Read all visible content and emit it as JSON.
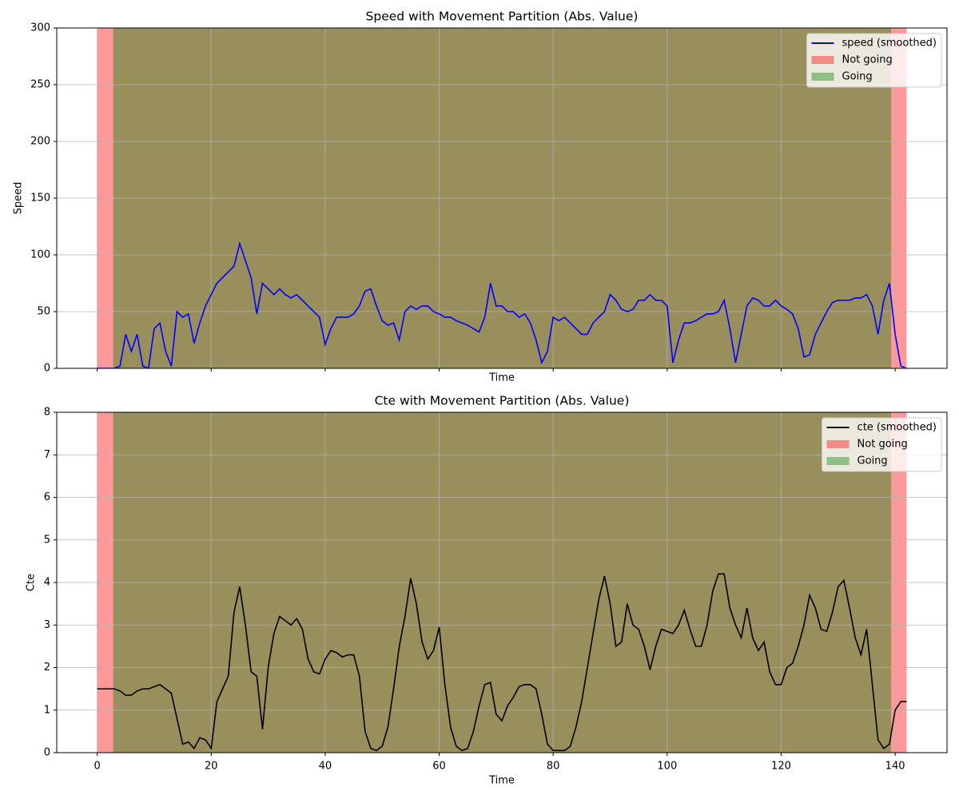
{
  "chart_data": [
    {
      "type": "line",
      "title": "Speed with Movement Partition (Abs. Value)",
      "xlabel": "Time",
      "ylabel": "Speed",
      "x": [
        0,
        1,
        2,
        3,
        4,
        5,
        6,
        7,
        8,
        9,
        10,
        11,
        12,
        13,
        14,
        15,
        16,
        17,
        18,
        19,
        20,
        21,
        22,
        23,
        24,
        25,
        26,
        27,
        28,
        29,
        30,
        31,
        32,
        33,
        34,
        35,
        36,
        37,
        38,
        39,
        40,
        41,
        42,
        43,
        44,
        45,
        46,
        47,
        48,
        49,
        50,
        51,
        52,
        53,
        54,
        55,
        56,
        57,
        58,
        59,
        60,
        61,
        62,
        63,
        64,
        65,
        66,
        67,
        68,
        69,
        70,
        71,
        72,
        73,
        74,
        75,
        76,
        77,
        78,
        79,
        80,
        81,
        82,
        83,
        84,
        85,
        86,
        87,
        88,
        89,
        90,
        91,
        92,
        93,
        94,
        95,
        96,
        97,
        98,
        99,
        100,
        101,
        102,
        103,
        104,
        105,
        106,
        107,
        108,
        109,
        110,
        111,
        112,
        113,
        114,
        115,
        116,
        117,
        118,
        119,
        120,
        121,
        122,
        123,
        124,
        125,
        126,
        127,
        128,
        129,
        130,
        131,
        132,
        133,
        134,
        135,
        136,
        137,
        138,
        139,
        140,
        141,
        142
      ],
      "series": [
        {
          "name": "speed (smoothed)",
          "color": "#0000ff",
          "values": [
            0,
            0,
            0,
            0,
            2,
            30,
            15,
            30,
            2,
            0,
            35,
            40,
            15,
            2,
            50,
            45,
            48,
            22,
            40,
            55,
            65,
            75,
            80,
            85,
            90,
            110,
            95,
            80,
            48,
            75,
            70,
            65,
            70,
            65,
            62,
            65,
            60,
            55,
            50,
            45,
            21,
            35,
            45,
            45,
            45,
            48,
            55,
            68,
            70,
            55,
            42,
            38,
            40,
            25,
            50,
            55,
            52,
            55,
            55,
            50,
            48,
            45,
            45,
            42,
            40,
            38,
            35,
            32,
            45,
            75,
            55,
            55,
            50,
            50,
            45,
            48,
            40,
            25,
            5,
            15,
            45,
            42,
            45,
            40,
            35,
            30,
            30,
            40,
            45,
            50,
            65,
            60,
            52,
            50,
            52,
            60,
            60,
            65,
            60,
            60,
            55,
            5,
            25,
            40,
            40,
            42,
            45,
            48,
            48,
            50,
            60,
            35,
            5,
            30,
            55,
            62,
            60,
            55,
            55,
            60,
            55,
            52,
            48,
            35,
            10,
            12,
            30,
            40,
            50,
            58,
            60,
            60,
            60,
            62,
            62,
            65,
            55,
            30,
            60,
            75,
            30,
            2,
            0
          ]
        }
      ],
      "spans": [
        {
          "name": "Not going",
          "color": "#ff0000",
          "alpha": 0.4,
          "ranges": [
            [
              0,
              142
            ]
          ]
        },
        {
          "name": "Going",
          "color": "#008000",
          "alpha": 0.4,
          "ranges": [
            [
              2.8,
              139.3
            ]
          ]
        }
      ],
      "xlim": [
        -7.1,
        149.1
      ],
      "ylim": [
        0,
        300
      ],
      "xticks": [
        0,
        20,
        40,
        60,
        80,
        100,
        120,
        140
      ],
      "yticks": [
        0,
        50,
        100,
        150,
        200,
        250,
        300
      ],
      "xtick_labels": false,
      "grid": true,
      "legend": "upper right"
    },
    {
      "type": "line",
      "title": "Cte with Movement Partition (Abs. Value)",
      "xlabel": "Time",
      "ylabel": "Cte",
      "x": [
        0,
        1,
        2,
        3,
        4,
        5,
        6,
        7,
        8,
        9,
        10,
        11,
        12,
        13,
        14,
        15,
        16,
        17,
        18,
        19,
        20,
        21,
        22,
        23,
        24,
        25,
        26,
        27,
        28,
        29,
        30,
        31,
        32,
        33,
        34,
        35,
        36,
        37,
        38,
        39,
        40,
        41,
        42,
        43,
        44,
        45,
        46,
        47,
        48,
        49,
        50,
        51,
        52,
        53,
        54,
        55,
        56,
        57,
        58,
        59,
        60,
        61,
        62,
        63,
        64,
        65,
        66,
        67,
        68,
        69,
        70,
        71,
        72,
        73,
        74,
        75,
        76,
        77,
        78,
        79,
        80,
        81,
        82,
        83,
        84,
        85,
        86,
        87,
        88,
        89,
        90,
        91,
        92,
        93,
        94,
        95,
        96,
        97,
        98,
        99,
        100,
        101,
        102,
        103,
        104,
        105,
        106,
        107,
        108,
        109,
        110,
        111,
        112,
        113,
        114,
        115,
        116,
        117,
        118,
        119,
        120,
        121,
        122,
        123,
        124,
        125,
        126,
        127,
        128,
        129,
        130,
        131,
        132,
        133,
        134,
        135,
        136,
        137,
        138,
        139,
        140,
        141,
        142
      ],
      "series": [
        {
          "name": "cte (smoothed)",
          "color": "#000000",
          "values": [
            1.5,
            1.5,
            1.5,
            1.5,
            1.45,
            1.35,
            1.35,
            1.45,
            1.5,
            1.5,
            1.55,
            1.6,
            1.5,
            1.4,
            0.8,
            0.2,
            0.25,
            0.1,
            0.35,
            0.3,
            0.1,
            1.2,
            1.5,
            1.8,
            3.3,
            3.9,
            3.0,
            1.9,
            1.8,
            0.55,
            2.0,
            2.8,
            3.2,
            3.1,
            3.0,
            3.15,
            2.9,
            2.2,
            1.9,
            1.85,
            2.2,
            2.4,
            2.35,
            2.25,
            2.3,
            2.3,
            1.8,
            0.5,
            0.1,
            0.05,
            0.15,
            0.6,
            1.5,
            2.5,
            3.2,
            4.1,
            3.5,
            2.6,
            2.2,
            2.4,
            2.95,
            1.6,
            0.6,
            0.15,
            0.05,
            0.1,
            0.5,
            1.1,
            1.6,
            1.65,
            0.9,
            0.75,
            1.1,
            1.3,
            1.55,
            1.6,
            1.6,
            1.5,
            0.9,
            0.2,
            0.05,
            0.05,
            0.05,
            0.15,
            0.6,
            1.2,
            2.0,
            2.8,
            3.6,
            4.15,
            3.5,
            2.5,
            2.6,
            3.5,
            3.0,
            2.9,
            2.5,
            1.95,
            2.5,
            2.9,
            2.85,
            2.8,
            3.0,
            3.35,
            2.9,
            2.5,
            2.5,
            3.0,
            3.8,
            4.2,
            4.2,
            3.4,
            3.0,
            2.7,
            3.4,
            2.7,
            2.4,
            2.6,
            1.9,
            1.6,
            1.6,
            2.0,
            2.1,
            2.5,
            3.0,
            3.7,
            3.4,
            2.9,
            2.85,
            3.3,
            3.9,
            4.05,
            3.4,
            2.7,
            2.3,
            2.9,
            1.6,
            0.3,
            0.1,
            0.2,
            1.0,
            1.2,
            1.2
          ]
        }
      ],
      "spans": [
        {
          "name": "Not going",
          "color": "#ff0000",
          "alpha": 0.4,
          "ranges": [
            [
              0,
              142
            ]
          ]
        },
        {
          "name": "Going",
          "color": "#008000",
          "alpha": 0.4,
          "ranges": [
            [
              2.8,
              139.3
            ]
          ]
        }
      ],
      "xlim": [
        -7.1,
        149.1
      ],
      "ylim": [
        0,
        8
      ],
      "xticks": [
        0,
        20,
        40,
        60,
        80,
        100,
        120,
        140
      ],
      "yticks": [
        0,
        1,
        2,
        3,
        4,
        5,
        6,
        7,
        8
      ],
      "xtick_labels": true,
      "grid": true,
      "legend": "upper right"
    }
  ]
}
